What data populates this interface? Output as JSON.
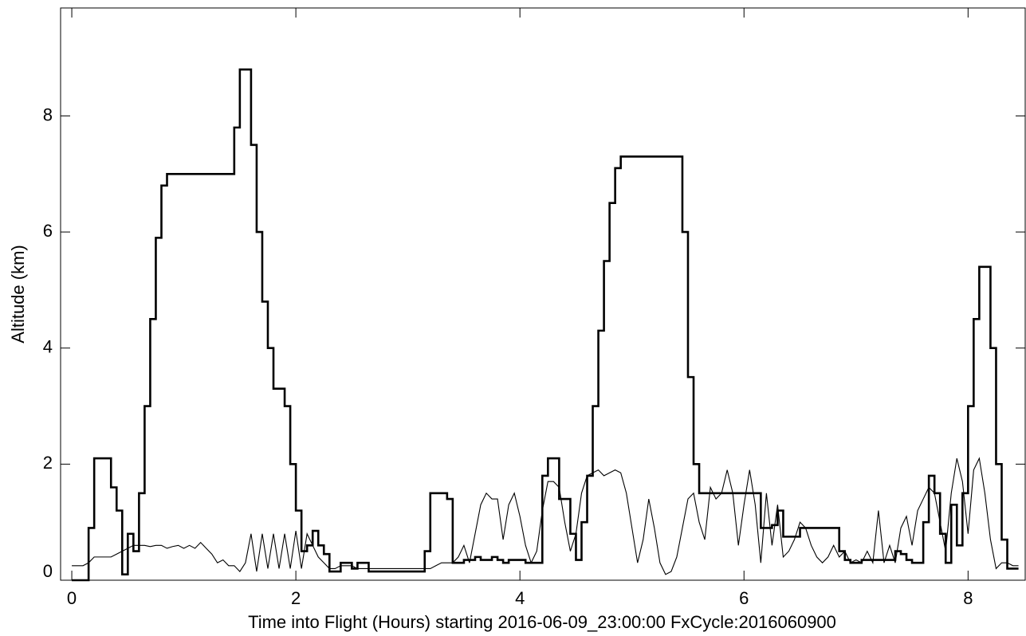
{
  "chart_data": {
    "type": "line",
    "x_label": "Time into Flight (Hours) starting 2016-06-09_23:00:00  FxCycle:2016060900",
    "y_label": "Altitude (km)",
    "xlim": [
      -0.1,
      8.51
    ],
    "ylim": [
      0,
      9.86
    ],
    "xticks": [
      0,
      2,
      4,
      6,
      8
    ],
    "yticks": [
      0,
      2,
      4,
      6,
      8
    ],
    "grid": false,
    "x": [
      0,
      0.05,
      0.1,
      0.15,
      0.2,
      0.25,
      0.3,
      0.35,
      0.4,
      0.45,
      0.5,
      0.55,
      0.6,
      0.65,
      0.7,
      0.75,
      0.8,
      0.85,
      0.9,
      0.95,
      1.0,
      1.05,
      1.1,
      1.15,
      1.2,
      1.25,
      1.3,
      1.35,
      1.4,
      1.45,
      1.5,
      1.55,
      1.6,
      1.65,
      1.7,
      1.75,
      1.8,
      1.85,
      1.9,
      1.95,
      2.0,
      2.05,
      2.1,
      2.15,
      2.2,
      2.25,
      2.3,
      2.35,
      2.4,
      2.45,
      2.5,
      2.55,
      2.6,
      2.65,
      2.7,
      2.75,
      2.8,
      2.85,
      2.9,
      2.95,
      3.0,
      3.05,
      3.1,
      3.15,
      3.2,
      3.25,
      3.3,
      3.35,
      3.4,
      3.45,
      3.5,
      3.55,
      3.6,
      3.65,
      3.7,
      3.75,
      3.8,
      3.85,
      3.9,
      3.95,
      4.0,
      4.05,
      4.1,
      4.15,
      4.2,
      4.25,
      4.3,
      4.35,
      4.4,
      4.45,
      4.5,
      4.55,
      4.6,
      4.65,
      4.7,
      4.75,
      4.8,
      4.85,
      4.9,
      4.95,
      5.0,
      5.05,
      5.1,
      5.15,
      5.2,
      5.25,
      5.3,
      5.35,
      5.4,
      5.45,
      5.5,
      5.55,
      5.6,
      5.65,
      5.7,
      5.75,
      5.8,
      5.85,
      5.9,
      5.95,
      6.0,
      6.05,
      6.1,
      6.15,
      6.2,
      6.25,
      6.3,
      6.35,
      6.4,
      6.45,
      6.5,
      6.55,
      6.6,
      6.65,
      6.7,
      6.75,
      6.8,
      6.85,
      6.9,
      6.95,
      7.0,
      7.05,
      7.1,
      7.15,
      7.2,
      7.25,
      7.3,
      7.35,
      7.4,
      7.45,
      7.5,
      7.55,
      7.6,
      7.65,
      7.7,
      7.75,
      7.8,
      7.85,
      7.9,
      7.95,
      8.0,
      8.05,
      8.1,
      8.15,
      8.2,
      8.25,
      8.3,
      8.35,
      8.4,
      8.45
    ],
    "series": [
      {
        "color": "#000000",
        "line_width": 2.6,
        "step": true,
        "values": [
          0,
          0,
          0,
          0.9,
          2.1,
          2.1,
          2.1,
          1.6,
          1.2,
          0.1,
          0.8,
          0.5,
          1.5,
          3.0,
          4.5,
          5.9,
          6.8,
          7.0,
          7.0,
          7.0,
          7.0,
          7.0,
          7.0,
          7.0,
          7.0,
          7.0,
          7.0,
          7.0,
          7.0,
          7.8,
          8.8,
          8.8,
          7.5,
          6.0,
          4.8,
          4.0,
          3.3,
          3.3,
          3.0,
          2.0,
          1.2,
          0.5,
          0.6,
          0.85,
          0.6,
          0.45,
          0.15,
          0.15,
          0.3,
          0.3,
          0.2,
          0.3,
          0.3,
          0.15,
          0.15,
          0.15,
          0.15,
          0.15,
          0.15,
          0.15,
          0.15,
          0.15,
          0.15,
          0.5,
          1.5,
          1.5,
          1.5,
          1.4,
          0.3,
          0.3,
          0.35,
          0.35,
          0.4,
          0.35,
          0.35,
          0.4,
          0.35,
          0.3,
          0.35,
          0.35,
          0.35,
          0.3,
          0.3,
          0.3,
          1.8,
          2.1,
          2.1,
          1.4,
          1.4,
          0.8,
          0.35,
          1.0,
          1.8,
          3.0,
          4.3,
          5.5,
          6.5,
          7.1,
          7.3,
          7.3,
          7.3,
          7.3,
          7.3,
          7.3,
          7.3,
          7.3,
          7.3,
          7.3,
          7.3,
          6.0,
          3.5,
          2.0,
          1.5,
          1.5,
          1.5,
          1.5,
          1.5,
          1.5,
          1.5,
          1.5,
          1.5,
          1.5,
          1.5,
          0.9,
          0.9,
          0.95,
          1.2,
          0.75,
          0.75,
          0.75,
          0.9,
          0.9,
          0.9,
          0.9,
          0.9,
          0.9,
          0.9,
          0.5,
          0.35,
          0.3,
          0.3,
          0.35,
          0.35,
          0.35,
          0.35,
          0.35,
          0.35,
          0.5,
          0.45,
          0.35,
          0.3,
          0.3,
          1.0,
          1.8,
          1.5,
          0.8,
          0.3,
          1.3,
          0.6,
          1.5,
          3.0,
          4.5,
          5.4,
          5.4,
          4.0,
          2.0,
          0.7,
          0.2,
          0.2,
          0.2
        ]
      },
      {
        "color": "#000000",
        "line_width": 1.1,
        "step": false,
        "values": [
          0.25,
          0.25,
          0.25,
          0.3,
          0.4,
          0.4,
          0.4,
          0.4,
          0.45,
          0.5,
          0.55,
          0.6,
          0.6,
          0.6,
          0.58,
          0.6,
          0.6,
          0.55,
          0.58,
          0.6,
          0.55,
          0.6,
          0.55,
          0.65,
          0.55,
          0.45,
          0.3,
          0.35,
          0.25,
          0.25,
          0.15,
          0.3,
          0.8,
          0.15,
          0.8,
          0.2,
          0.8,
          0.2,
          0.8,
          0.2,
          0.85,
          0.2,
          0.8,
          0.6,
          0.4,
          0.3,
          0.2,
          0.2,
          0.25,
          0.25,
          0.25,
          0.2,
          0.2,
          0.2,
          0.2,
          0.2,
          0.2,
          0.2,
          0.2,
          0.2,
          0.2,
          0.2,
          0.2,
          0.2,
          0.2,
          0.25,
          0.3,
          0.3,
          0.3,
          0.4,
          0.6,
          0.3,
          0.8,
          1.3,
          1.5,
          1.4,
          1.4,
          0.7,
          1.3,
          1.5,
          1.1,
          0.6,
          0.3,
          0.5,
          1.2,
          1.7,
          1.7,
          1.6,
          1.0,
          0.5,
          0.8,
          1.5,
          1.8,
          1.85,
          1.9,
          1.8,
          1.85,
          1.9,
          1.85,
          1.5,
          0.9,
          0.3,
          0.7,
          1.4,
          0.9,
          0.3,
          0.1,
          0.15,
          0.4,
          0.9,
          1.4,
          1.5,
          1.0,
          0.7,
          1.6,
          1.4,
          1.5,
          1.9,
          1.5,
          0.6,
          1.3,
          1.9,
          1.3,
          0.3,
          1.5,
          0.6,
          1.3,
          0.4,
          0.5,
          0.7,
          1.0,
          0.9,
          0.6,
          0.4,
          0.3,
          0.4,
          0.6,
          0.4,
          0.5,
          0.3,
          0.35,
          0.3,
          0.5,
          0.3,
          1.2,
          0.3,
          0.6,
          0.3,
          0.9,
          1.1,
          0.6,
          1.2,
          1.4,
          1.6,
          1.5,
          1.0,
          0.5,
          1.5,
          2.1,
          1.7,
          0.8,
          1.9,
          2.1,
          1.5,
          0.7,
          0.2,
          0.3,
          0.3,
          0.25,
          0.25
        ]
      }
    ]
  }
}
